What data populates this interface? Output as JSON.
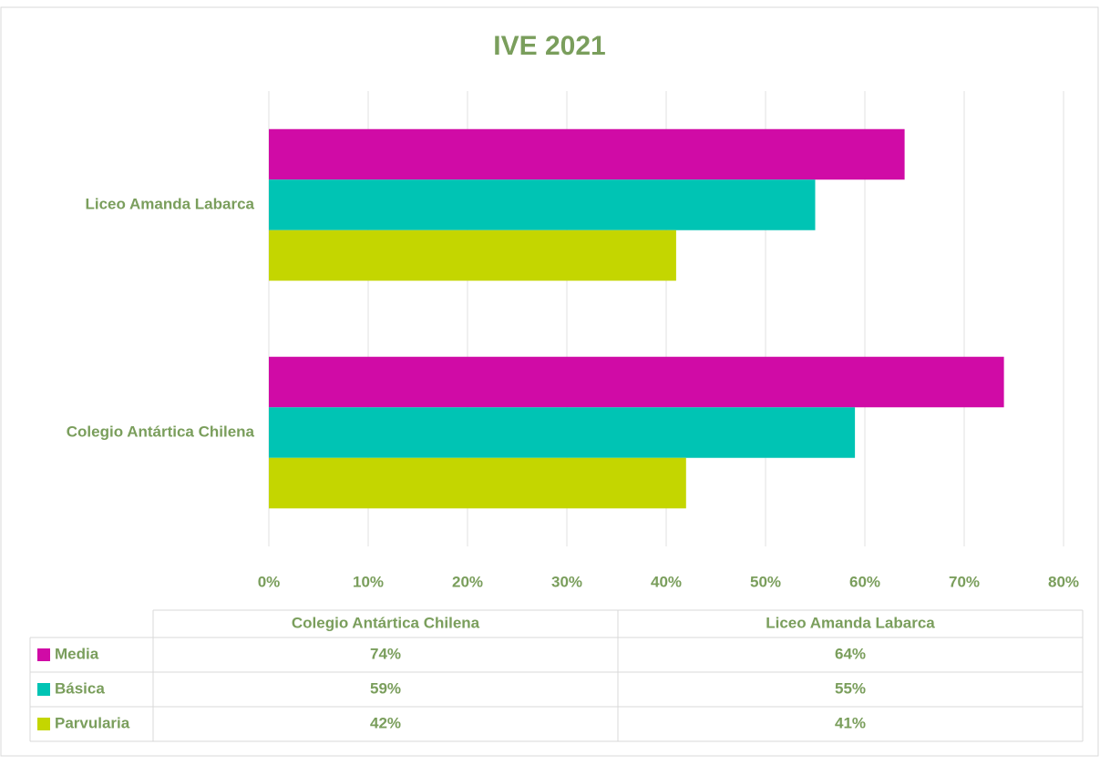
{
  "chart_data": {
    "type": "bar",
    "orientation": "horizontal",
    "title": "IVE 2021",
    "categories": [
      "Colegio Antártica Chilena",
      "Liceo Amanda Labarca"
    ],
    "series": [
      {
        "name": "Media",
        "color": "#d00ba6",
        "values": [
          74,
          64
        ],
        "value_labels": [
          "74%",
          "64%"
        ]
      },
      {
        "name": "Básica",
        "color": "#00c4b4",
        "values": [
          59,
          55
        ],
        "value_labels": [
          "59%",
          "55%"
        ]
      },
      {
        "name": "Parvularia",
        "color": "#c4d600",
        "values": [
          42,
          41
        ],
        "value_labels": [
          "42%",
          "41%"
        ]
      }
    ],
    "xlim": [
      0,
      80
    ],
    "xticks": [
      {
        "value": 0,
        "label": "0%"
      },
      {
        "value": 10,
        "label": "10%"
      },
      {
        "value": 20,
        "label": "20%"
      },
      {
        "value": 30,
        "label": "30%"
      },
      {
        "value": 40,
        "label": "40%"
      },
      {
        "value": 50,
        "label": "50%"
      },
      {
        "value": 60,
        "label": "60%"
      },
      {
        "value": 70,
        "label": "70%"
      },
      {
        "value": 80,
        "label": "80%"
      }
    ],
    "grid": true
  }
}
